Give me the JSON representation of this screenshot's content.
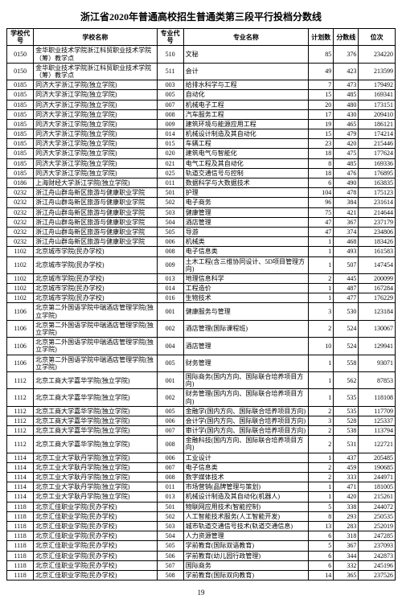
{
  "page_title": "浙江省2020年普通高校招生普通类第三段平行投档分数线",
  "page_number": "19",
  "headers": {
    "school_code": "学校代号",
    "school_name": "学校名称",
    "major_code": "专业代号",
    "major_name": "专业名称",
    "plan": "计划数",
    "score": "分数线",
    "rank": "位次"
  },
  "rows": [
    {
      "sc": "0150",
      "sn": "金华职业技术学院浙江科贸职业技术学院（筹）教学点",
      "mc": "510",
      "mn": "文秘",
      "p": "85",
      "s": "376",
      "r": "234220"
    },
    {
      "sc": "0150",
      "sn": "金华职业技术学院浙江科贸职业技术学院（筹）教学点",
      "mc": "511",
      "mn": "会计",
      "p": "49",
      "s": "423",
      "r": "213599"
    },
    {
      "sc": "0185",
      "sn": "同济大学浙江学院(独立学院)",
      "mc": "003",
      "mn": "给排水科学与工程",
      "p": "7",
      "s": "473",
      "r": "179492"
    },
    {
      "sc": "0185",
      "sn": "同济大学浙江学院(独立学院)",
      "mc": "005",
      "mn": "自动化",
      "p": "15",
      "s": "485",
      "r": "169341"
    },
    {
      "sc": "0185",
      "sn": "同济大学浙江学院(独立学院)",
      "mc": "007",
      "mn": "机械电子工程",
      "p": "20",
      "s": "480",
      "r": "173151"
    },
    {
      "sc": "0185",
      "sn": "同济大学浙江学院(独立学院)",
      "mc": "008",
      "mn": "汽车服务工程",
      "p": "17",
      "s": "430",
      "r": "209410"
    },
    {
      "sc": "0185",
      "sn": "同济大学浙江学院(独立学院)",
      "mc": "009",
      "mn": "建筑环境与能源应用工程",
      "p": "19",
      "s": "465",
      "r": "186121"
    },
    {
      "sc": "0185",
      "sn": "同济大学浙江学院(独立学院)",
      "mc": "014",
      "mn": "机械设计制造及其自动化",
      "p": "15",
      "s": "479",
      "r": "174214"
    },
    {
      "sc": "0185",
      "sn": "同济大学浙江学院(独立学院)",
      "mc": "015",
      "mn": "车辆工程",
      "p": "23",
      "s": "420",
      "r": "215446"
    },
    {
      "sc": "0185",
      "sn": "同济大学浙江学院(独立学院)",
      "mc": "020",
      "mn": "建筑电气与智能化",
      "p": "18",
      "s": "475",
      "r": "177624"
    },
    {
      "sc": "0185",
      "sn": "同济大学浙江学院(独立学院)",
      "mc": "021",
      "mn": "电气工程及其自动化",
      "p": "8",
      "s": "485",
      "r": "169336"
    },
    {
      "sc": "0185",
      "sn": "同济大学浙江学院(独立学院)",
      "mc": "025",
      "mn": "轨道交通信号与控制",
      "p": "18",
      "s": "476",
      "r": "176895"
    },
    {
      "sc": "0186",
      "sn": "上海财经大学浙江学院(独立学院)",
      "mc": "011",
      "mn": "数据科学与大数据技术",
      "p": "6",
      "s": "490",
      "r": "163835"
    },
    {
      "sc": "0232",
      "sn": "浙江舟山群岛新区旅游与健康职业学院",
      "mc": "501",
      "mn": "护理",
      "p": "104",
      "s": "478",
      "r": "175123"
    },
    {
      "sc": "0232",
      "sn": "浙江舟山群岛新区旅游与健康职业学院",
      "mc": "502",
      "mn": "电子商务",
      "p": "96",
      "s": "384",
      "r": "231614"
    },
    {
      "sc": "0232",
      "sn": "浙江舟山群岛新区旅游与健康职业学院",
      "mc": "503",
      "mn": "健康管理",
      "p": "75",
      "s": "421",
      "r": "214644"
    },
    {
      "sc": "0232",
      "sn": "浙江舟山群岛新区旅游与健康职业学院",
      "mc": "504",
      "mn": "酒店管理",
      "p": "47",
      "s": "367",
      "r": "237179"
    },
    {
      "sc": "0232",
      "sn": "浙江舟山群岛新区旅游与健康职业学院",
      "mc": "505",
      "mn": "导游",
      "p": "47",
      "s": "374",
      "r": "234806"
    },
    {
      "sc": "0232",
      "sn": "浙江舟山群岛新区旅游与健康职业学院",
      "mc": "006",
      "mn": "机械类",
      "p": "1",
      "s": "468",
      "r": "183426"
    },
    {
      "sc": "1102",
      "sn": "北京城市学院(民办学校)",
      "mc": "008",
      "mn": "电子信息类",
      "p": "1",
      "s": "493",
      "r": "161583"
    },
    {
      "sc": "1102",
      "sn": "北京城市学院(民办学校)",
      "mc": "009",
      "mn": "土木工程(含三维协同设计、5D项目管理方向)",
      "p": "1",
      "s": "507",
      "r": "147454"
    },
    {
      "sc": "1102",
      "sn": "北京城市学院(民办学校)",
      "mc": "013",
      "mn": "地理信息科学",
      "p": "2",
      "s": "445",
      "r": "200099"
    },
    {
      "sc": "1102",
      "sn": "北京城市学院(民办学校)",
      "mc": "014",
      "mn": "工程造价",
      "p": "1",
      "s": "487",
      "r": "167284"
    },
    {
      "sc": "1102",
      "sn": "北京城市学院(民办学校)",
      "mc": "016",
      "mn": "生物技术",
      "p": "1",
      "s": "477",
      "r": "176229"
    },
    {
      "sc": "1106",
      "sn": "北京第二外国语学院中瑞酒店管理学院(独立学院)",
      "mc": "001",
      "mn": "健康服务与管理",
      "p": "3",
      "s": "530",
      "r": "123184"
    },
    {
      "sc": "1106",
      "sn": "北京第二外国语学院中瑞酒店管理学院(独立学院)",
      "mc": "002",
      "mn": "酒店管理(国际课程班)",
      "p": "2",
      "s": "524",
      "r": "130067"
    },
    {
      "sc": "1106",
      "sn": "北京第二外国语学院中瑞酒店管理学院(独立学院)",
      "mc": "004",
      "mn": "酒店管理",
      "p": "10",
      "s": "524",
      "r": "129941"
    },
    {
      "sc": "1106",
      "sn": "北京第二外国语学院中瑞酒店管理学院(独立学院)",
      "mc": "005",
      "mn": "财务管理",
      "p": "1",
      "s": "558",
      "r": "93071"
    },
    {
      "sc": "1112",
      "sn": "北京工商大学嘉华学院(独立学院)",
      "mc": "001",
      "mn": "国际商务(国内方向、国际联合培养项目方向)",
      "p": "1",
      "s": "562",
      "r": "87853"
    },
    {
      "sc": "1112",
      "sn": "北京工商大学嘉华学院(独立学院)",
      "mc": "002",
      "mn": "财务管理(国内方向、国际联合培养项目方向)",
      "p": "1",
      "s": "535",
      "r": "118108"
    },
    {
      "sc": "1112",
      "sn": "北京工商大学嘉华学院(独立学院)",
      "mc": "005",
      "mn": "金融学(国内方向、国际联合培养项目方向)",
      "p": "2",
      "s": "535",
      "r": "117709"
    },
    {
      "sc": "1112",
      "sn": "北京工商大学嘉华学院(独立学院)",
      "mc": "006",
      "mn": "会计学(国内方向、国际联合培养项目方向)",
      "p": "3",
      "s": "528",
      "r": "125337"
    },
    {
      "sc": "1112",
      "sn": "北京工商大学嘉华学院(独立学院)",
      "mc": "007",
      "mn": "审计学(国内方向、国际联合培养项目方向)",
      "p": "2",
      "s": "538",
      "r": "113794"
    },
    {
      "sc": "1112",
      "sn": "北京工商大学嘉华学院(独立学院)",
      "mc": "008",
      "mn": "金融科技(国内方向、国际联合培养项目方向)",
      "p": "2",
      "s": "531",
      "r": "122721"
    },
    {
      "sc": "1114",
      "sn": "北京工业大学耿丹学院(独立学院)",
      "mc": "006",
      "mn": "工业设计",
      "p": "1",
      "s": "437",
      "r": "205485"
    },
    {
      "sc": "1114",
      "sn": "北京工业大学耿丹学院(独立学院)",
      "mc": "007",
      "mn": "电子信息类",
      "p": "2",
      "s": "459",
      "r": "190685"
    },
    {
      "sc": "1114",
      "sn": "北京工业大学耿丹学院(独立学院)",
      "mc": "008",
      "mn": "数字媒体技术",
      "p": "2",
      "s": "333",
      "r": "244971"
    },
    {
      "sc": "1114",
      "sn": "北京工业大学耿丹学院(独立学院)",
      "mc": "011",
      "mn": "市场营销(品牌管理与策划)",
      "p": "1",
      "s": "471",
      "r": "181005"
    },
    {
      "sc": "1114",
      "sn": "北京工业大学耿丹学院(独立学院)",
      "mc": "013",
      "mn": "机械设计制造及其自动化(机器人)",
      "p": "1",
      "s": "420",
      "r": "215261"
    },
    {
      "sc": "1118",
      "sn": "北京汇佳职业学院(民办学校)",
      "mc": "501",
      "mn": "物联网应用技术(智能控制)",
      "p": "5",
      "s": "338",
      "r": "244072"
    },
    {
      "sc": "1118",
      "sn": "北京汇佳职业学院(民办学校)",
      "mc": "502",
      "mn": "人工智能技术服务(人工智能开发)",
      "p": "8",
      "s": "293",
      "r": "250535"
    },
    {
      "sc": "1118",
      "sn": "北京汇佳职业学院(民办学校)",
      "mc": "503",
      "mn": "城市轨道交通信号技术(轨道交通信息)",
      "p": "13",
      "s": "283",
      "r": "252019"
    },
    {
      "sc": "1118",
      "sn": "北京汇佳职业学院(民办学校)",
      "mc": "504",
      "mn": "人力资源管理",
      "p": "6",
      "s": "318",
      "r": "247285"
    },
    {
      "sc": "1118",
      "sn": "北京汇佳职业学院(民办学校)",
      "mc": "505",
      "mn": "学前教育(国际双语教育)",
      "p": "5",
      "s": "367",
      "r": "237093"
    },
    {
      "sc": "1118",
      "sn": "北京汇佳职业学院(民办学校)",
      "mc": "506",
      "mn": "学前教育(幼儿园行政管理)",
      "p": "6",
      "s": "344",
      "r": "242873"
    },
    {
      "sc": "1118",
      "sn": "北京汇佳职业学院(民办学校)",
      "mc": "507",
      "mn": "国际商务",
      "p": "6",
      "s": "332",
      "r": "245196"
    },
    {
      "sc": "1118",
      "sn": "北京汇佳职业学院(民办学校)",
      "mc": "508",
      "mn": "学前教育(国际双向教育)",
      "p": "14",
      "s": "365",
      "r": "237526"
    }
  ]
}
